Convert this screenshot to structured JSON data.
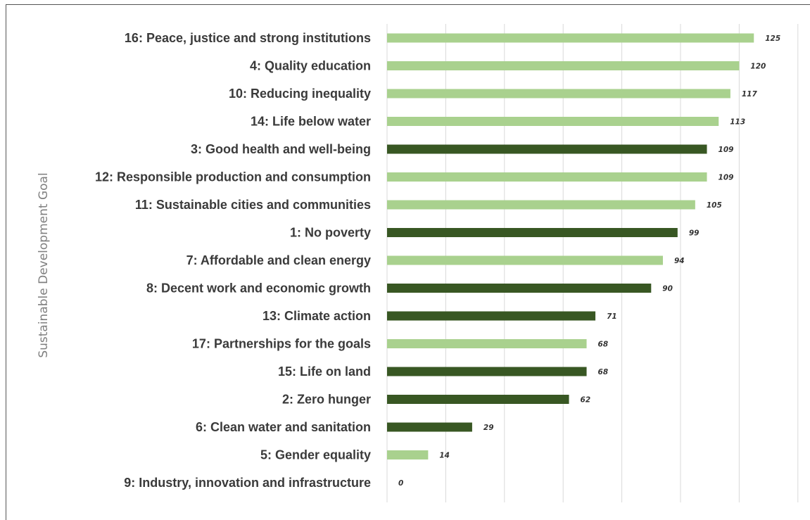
{
  "chart_data": {
    "type": "bar",
    "orientation": "horizontal",
    "ylabel": "Sustainable Development Goal",
    "xlabel": "",
    "xlim": [
      0,
      140
    ],
    "grid": true,
    "categories": [
      "16: Peace, justice and strong institutions",
      "4: Quality education",
      "10: Reducing inequality",
      "14: Life below water",
      "3: Good health and well-being",
      "12: Responsible production  and consumption",
      "11: Sustainable cities and communities",
      "1: No poverty",
      "7: Affordable and clean energy",
      "8: Decent work and economic growth",
      "13: Climate action",
      "17: Partnerships for the goals",
      "15: Life on land",
      "2: Zero hunger",
      "6: Clean water and sanitation",
      "5: Gender equality",
      "9: Industry, innovation and infrastructure"
    ],
    "values": [
      125,
      120,
      117,
      113,
      109,
      109,
      105,
      99,
      94,
      90,
      71,
      68,
      68,
      62,
      29,
      14,
      0
    ],
    "bar_tone": [
      "light",
      "light",
      "light",
      "light",
      "dark",
      "light",
      "light",
      "dark",
      "light",
      "dark",
      "dark",
      "light",
      "dark",
      "dark",
      "dark",
      "light",
      "dark"
    ],
    "colors": {
      "light": "#a9d18e",
      "dark": "#385723",
      "grid": "#d9d9d9"
    }
  }
}
